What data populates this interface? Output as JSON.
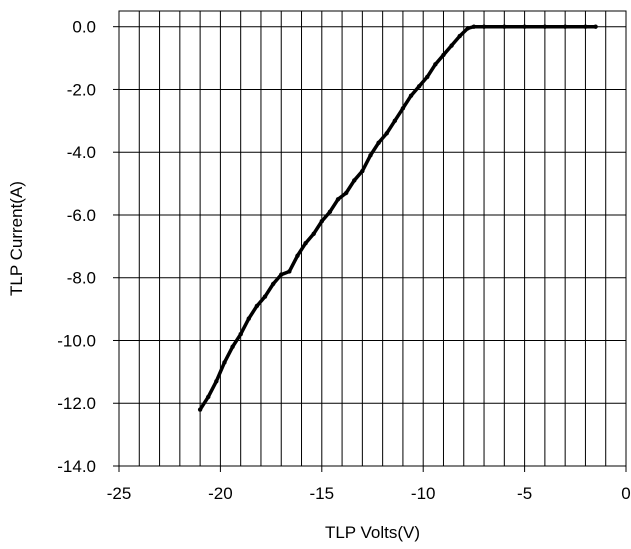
{
  "chart_data": {
    "type": "line",
    "xlabel": "TLP Volts(V)",
    "ylabel": "TLP Current(A)",
    "xlim": [
      -25,
      0
    ],
    "ylim": [
      -14,
      0.5
    ],
    "xticks": [
      -25,
      -20,
      -15,
      -10,
      -5,
      0
    ],
    "xtick_labels": [
      "-25",
      "-20",
      "-15",
      "-10",
      "-5",
      "0"
    ],
    "yticks": [
      0,
      -2,
      -4,
      -6,
      -8,
      -10,
      -12,
      -14
    ],
    "ytick_labels": [
      "0.0",
      "-2.0",
      "-4.0",
      "-6.0",
      "-8.0",
      "-10.0",
      "-12.0",
      "-14.0"
    ],
    "x_grid_step": 1,
    "y_grid_step": 2,
    "grid": true,
    "legend": "none",
    "line_color": "#000000",
    "series": [
      {
        "x": [
          -21.0,
          -20.6,
          -20.2,
          -19.8,
          -19.4,
          -19.0,
          -18.6,
          -18.2,
          -17.8,
          -17.4,
          -17.0,
          -16.6,
          -16.2,
          -15.8,
          -15.4,
          -15.0,
          -14.6,
          -14.2,
          -13.8,
          -13.4,
          -13.0,
          -12.6,
          -12.2,
          -11.8,
          -11.4,
          -11.0,
          -10.6,
          -10.2,
          -9.8,
          -9.4,
          -9.0,
          -8.6,
          -8.2,
          -7.8,
          -7.5,
          -7.0,
          -6.0,
          -5.0,
          -4.0,
          -3.0,
          -2.0,
          -1.5
        ],
        "y": [
          -12.2,
          -11.8,
          -11.3,
          -10.7,
          -10.2,
          -9.8,
          -9.3,
          -8.9,
          -8.6,
          -8.2,
          -7.9,
          -7.8,
          -7.3,
          -6.9,
          -6.6,
          -6.2,
          -5.9,
          -5.5,
          -5.3,
          -4.9,
          -4.6,
          -4.1,
          -3.7,
          -3.4,
          -3.0,
          -2.6,
          -2.2,
          -1.9,
          -1.6,
          -1.2,
          -0.9,
          -0.6,
          -0.3,
          -0.05,
          0.0,
          0.0,
          0.0,
          0.0,
          0.0,
          0.0,
          0.0,
          0.0
        ]
      }
    ]
  }
}
